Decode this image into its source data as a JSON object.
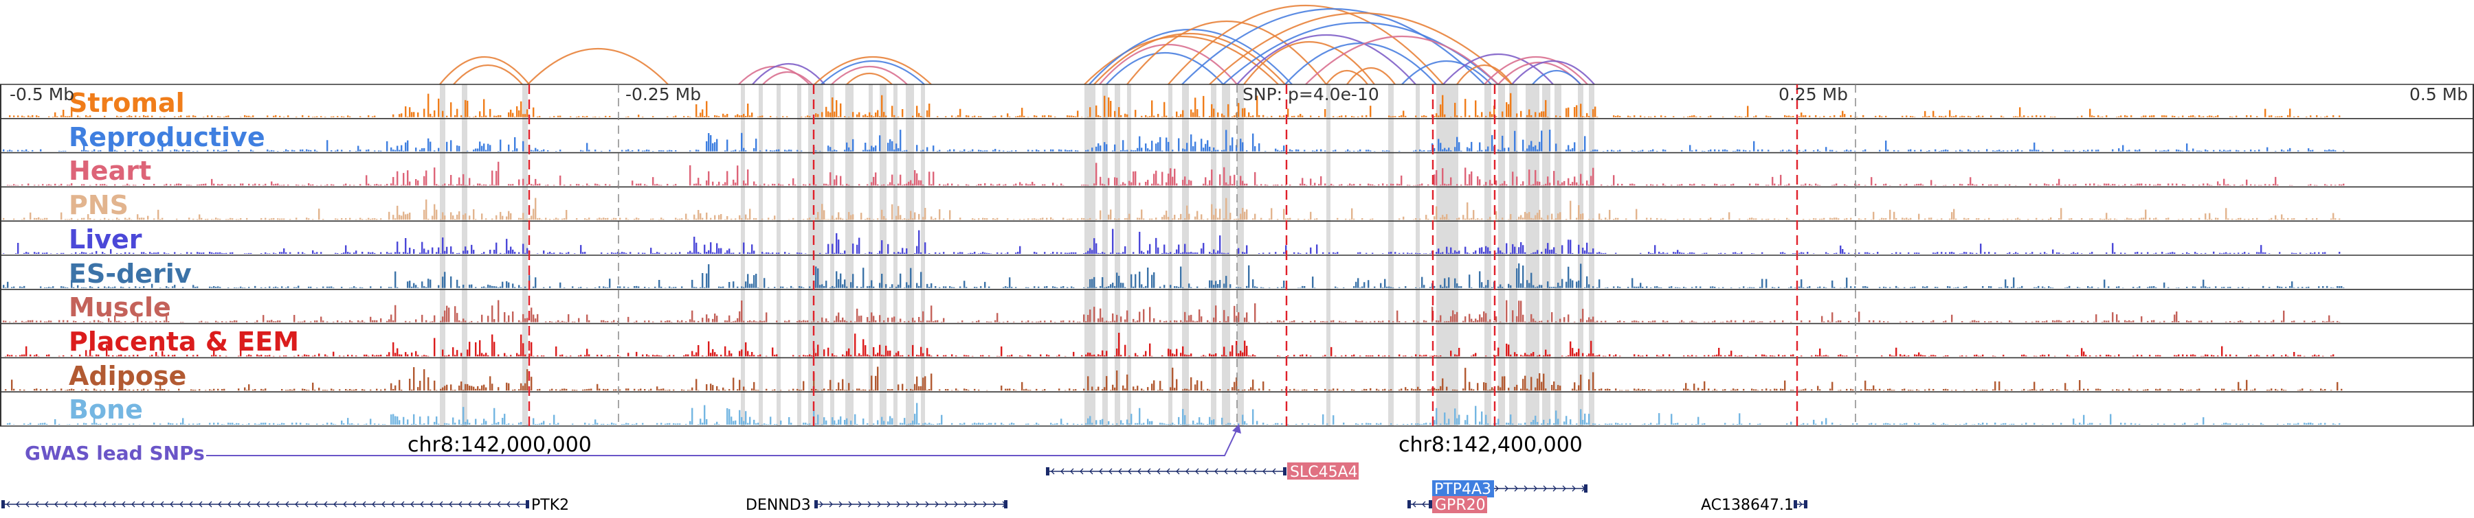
{
  "tracks": [
    {
      "label": "Stromal",
      "color": "#f07d1a"
    },
    {
      "label": "Reproductive",
      "color": "#3f7fe0"
    },
    {
      "label": "Heart",
      "color": "#dd6478"
    },
    {
      "label": "PNS",
      "color": "#e2b48e"
    },
    {
      "label": "Liver",
      "color": "#4b48d8"
    },
    {
      "label": "ES-deriv",
      "color": "#3c73a8"
    },
    {
      "label": "Muscle",
      "color": "#c4625a"
    },
    {
      "label": "Placenta & EEM",
      "color": "#db1c1c"
    },
    {
      "label": "Adipose",
      "color": "#b25a32"
    },
    {
      "label": "Bone",
      "color": "#74b6e2"
    }
  ],
  "axis": {
    "left_label": "-0.5 Mb",
    "left_mid_label": "-0.25 Mb",
    "snp_label": "SNP: p=4.0e-10",
    "right_mid_label": "0.25 Mb",
    "right_label": "0.5 Mb"
  },
  "coords": {
    "left": "chr8:142,000,000",
    "right": "chr8:142,400,000"
  },
  "gwas": {
    "label": "GWAS lead SNPs",
    "color": "#6a55c8"
  },
  "genes": [
    {
      "name": "SLC45A4",
      "badge": true,
      "badge_color": "#e07182",
      "strand": "-"
    },
    {
      "name": "PTP4A3",
      "badge": true,
      "badge_color": "#3f7fe0",
      "strand": "+"
    },
    {
      "name": "GPR20",
      "badge": true,
      "badge_color": "#e07182",
      "strand": "-"
    },
    {
      "name": "PTK2",
      "badge": false,
      "strand": "-"
    },
    {
      "name": "DENND3",
      "badge": false,
      "strand": "+"
    },
    {
      "name": "AC138647.1",
      "badge": false,
      "strand": "+"
    }
  ],
  "colors": {
    "loop_orange": "#e8823a",
    "loop_blue": "#4a7fe0",
    "loop_pink": "#d97090",
    "loop_purple": "#7f5fc8",
    "gene_line": "#1a2a6a",
    "highlight": "#dcdcdc",
    "snp_line": "#e0202a"
  }
}
